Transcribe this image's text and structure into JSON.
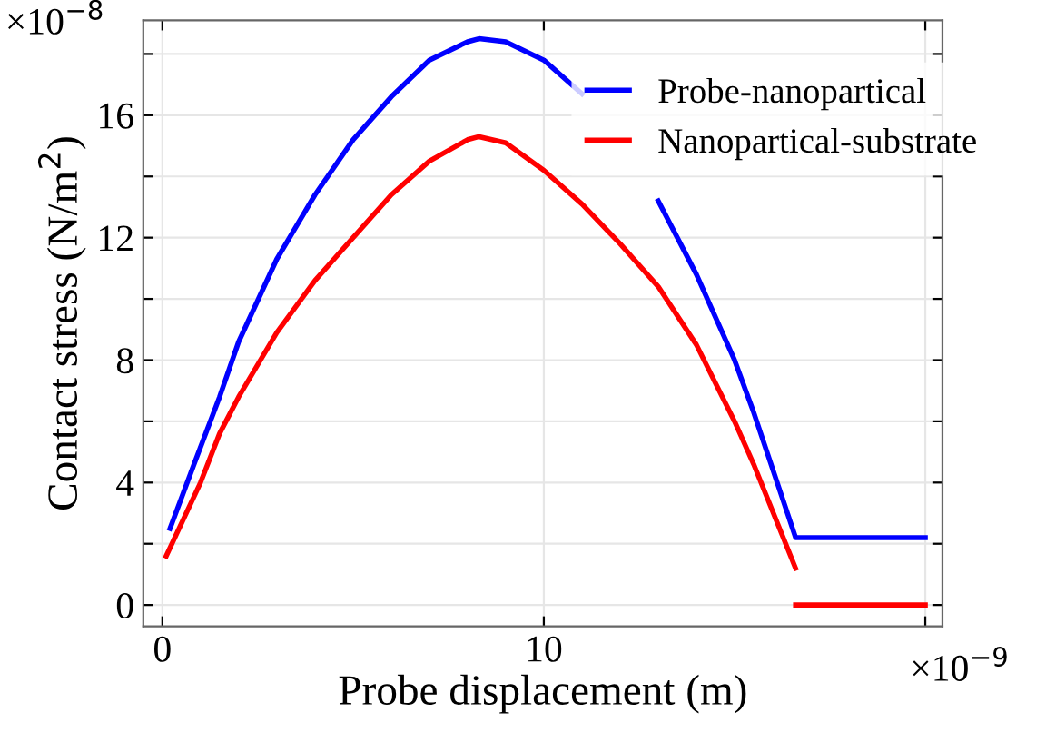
{
  "chart_data": {
    "type": "line",
    "xlabel": "Probe displacement (m)",
    "ylabel": "Contact stress (N/m$^{2}$)",
    "xlim": [
      -0.5,
      20.45
    ],
    "ylim": [
      -0.7,
      19.1
    ],
    "xticks": [
      0,
      10,
      {
        "value": 20,
        "label": null
      }
    ],
    "yticks": [
      0,
      {
        "value": 2,
        "label": null
      },
      4,
      {
        "value": 6,
        "label": null
      },
      8,
      {
        "value": 10,
        "label": null
      },
      12,
      {
        "value": 14,
        "label": null
      },
      16,
      {
        "value": 18,
        "label": null
      }
    ],
    "annotations": [
      "×10$^{−8}$",
      "×10$^{−9}$"
    ],
    "grid": true,
    "legend": "top right",
    "marker": "none",
    "line_style": "solid",
    "series": [
      {
        "name": "Probe-nanopartical",
        "color": "#0000ff",
        "x": [
          0.2,
          0.8,
          1.5,
          2,
          3,
          4,
          5,
          6,
          7,
          8,
          8.3,
          9,
          10,
          11,
          12,
          13,
          14,
          15,
          15.5,
          16.6,
          20
        ],
        "values": [
          2.5,
          4.5,
          6.8,
          8.6,
          11.3,
          13.4,
          15.2,
          16.6,
          17.8,
          18.4,
          18.5,
          18.4,
          17.8,
          16.7,
          null,
          13.2,
          10.8,
          8.0,
          6.3,
          2.2,
          2.2
        ]
      },
      {
        "name": "Nanopartical-substrate",
        "color": "#ff0000",
        "x": [
          0.1,
          1,
          1.5,
          2,
          3,
          4,
          5,
          6,
          7,
          8,
          8.3,
          9,
          10,
          11,
          12,
          13,
          14,
          15,
          15.5,
          16.6,
          null,
          16.6,
          20
        ],
        "values": [
          1.6,
          4.0,
          5.6,
          6.8,
          8.9,
          10.6,
          12.0,
          13.4,
          14.5,
          15.2,
          15.3,
          15.1,
          14.2,
          13.1,
          11.8,
          10.4,
          8.5,
          6.0,
          4.6,
          1.2,
          null,
          0,
          0
        ]
      }
    ]
  }
}
